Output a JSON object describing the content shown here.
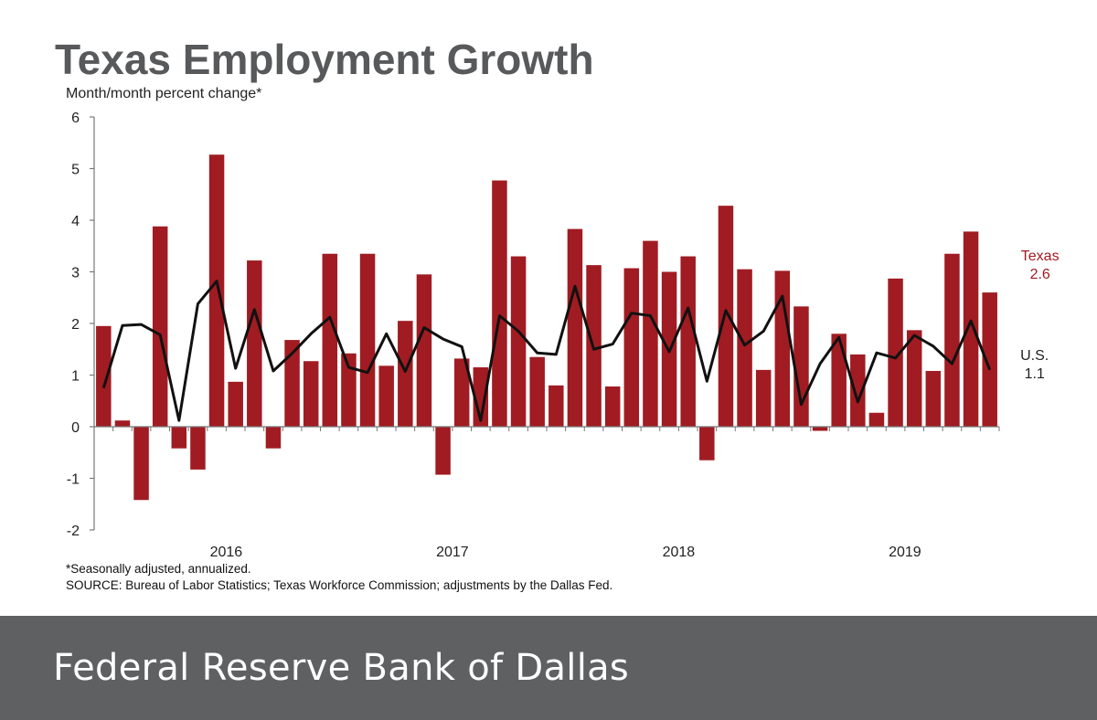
{
  "header": {
    "title": "Texas Employment Growth"
  },
  "footer": {
    "text": "Federal Reserve Bank of Dallas"
  },
  "footnotes": {
    "note": "*Seasonally adjusted, annualized.",
    "source": "SOURCE: Bureau of Labor Statistics; Texas Workforce Commission; adjustments by the Dallas Fed."
  },
  "colors": {
    "texas_bar": "#a01c22",
    "us_line": "#111111",
    "axis": "#777777"
  },
  "chart_data": {
    "type": "bar",
    "title": "Texas Employment Growth",
    "ylabel": "Month/month  percent change*",
    "xlabel": "",
    "ylim": [
      -2,
      6
    ],
    "yticks": [
      6,
      5,
      4,
      3,
      2,
      1,
      0,
      -1,
      -2
    ],
    "year_labels": [
      {
        "label": "2016",
        "center_index": 6.5
      },
      {
        "label": "2017",
        "center_index": 18.5
      },
      {
        "label": "2018",
        "center_index": 30.5
      },
      {
        "label": "2019",
        "center_index": 42.5
      }
    ],
    "series": [
      {
        "name": "Texas",
        "kind": "bar",
        "values": [
          1.95,
          0.12,
          -1.42,
          3.88,
          -0.42,
          -0.83,
          5.27,
          0.87,
          3.22,
          -0.42,
          1.68,
          1.27,
          3.35,
          1.42,
          3.35,
          1.18,
          2.05,
          2.95,
          -0.93,
          1.32,
          1.15,
          4.77,
          3.3,
          1.35,
          0.8,
          3.83,
          3.13,
          0.78,
          3.07,
          3.6,
          3.0,
          3.3,
          -0.65,
          4.28,
          3.05,
          1.1,
          3.02,
          2.33,
          -0.08,
          1.8,
          1.4,
          0.27,
          2.87,
          1.87,
          1.08,
          3.35,
          3.78,
          2.6
        ]
      },
      {
        "name": "U.S.",
        "kind": "line",
        "values": [
          0.75,
          1.96,
          1.98,
          1.78,
          0.12,
          2.38,
          2.82,
          1.13,
          2.27,
          1.08,
          1.42,
          1.8,
          2.12,
          1.15,
          1.05,
          1.8,
          1.07,
          1.92,
          1.7,
          1.55,
          0.12,
          2.15,
          1.85,
          1.43,
          1.4,
          2.72,
          1.5,
          1.6,
          2.2,
          2.15,
          1.45,
          2.3,
          0.88,
          2.25,
          1.58,
          1.85,
          2.53,
          0.43,
          1.22,
          1.73,
          0.48,
          1.43,
          1.33,
          1.77,
          1.56,
          1.22,
          2.05,
          1.1
        ]
      }
    ],
    "annotations": {
      "texas_name": "Texas",
      "texas_value": "2.6",
      "us_name": "U.S.",
      "us_value": "1.1"
    }
  }
}
